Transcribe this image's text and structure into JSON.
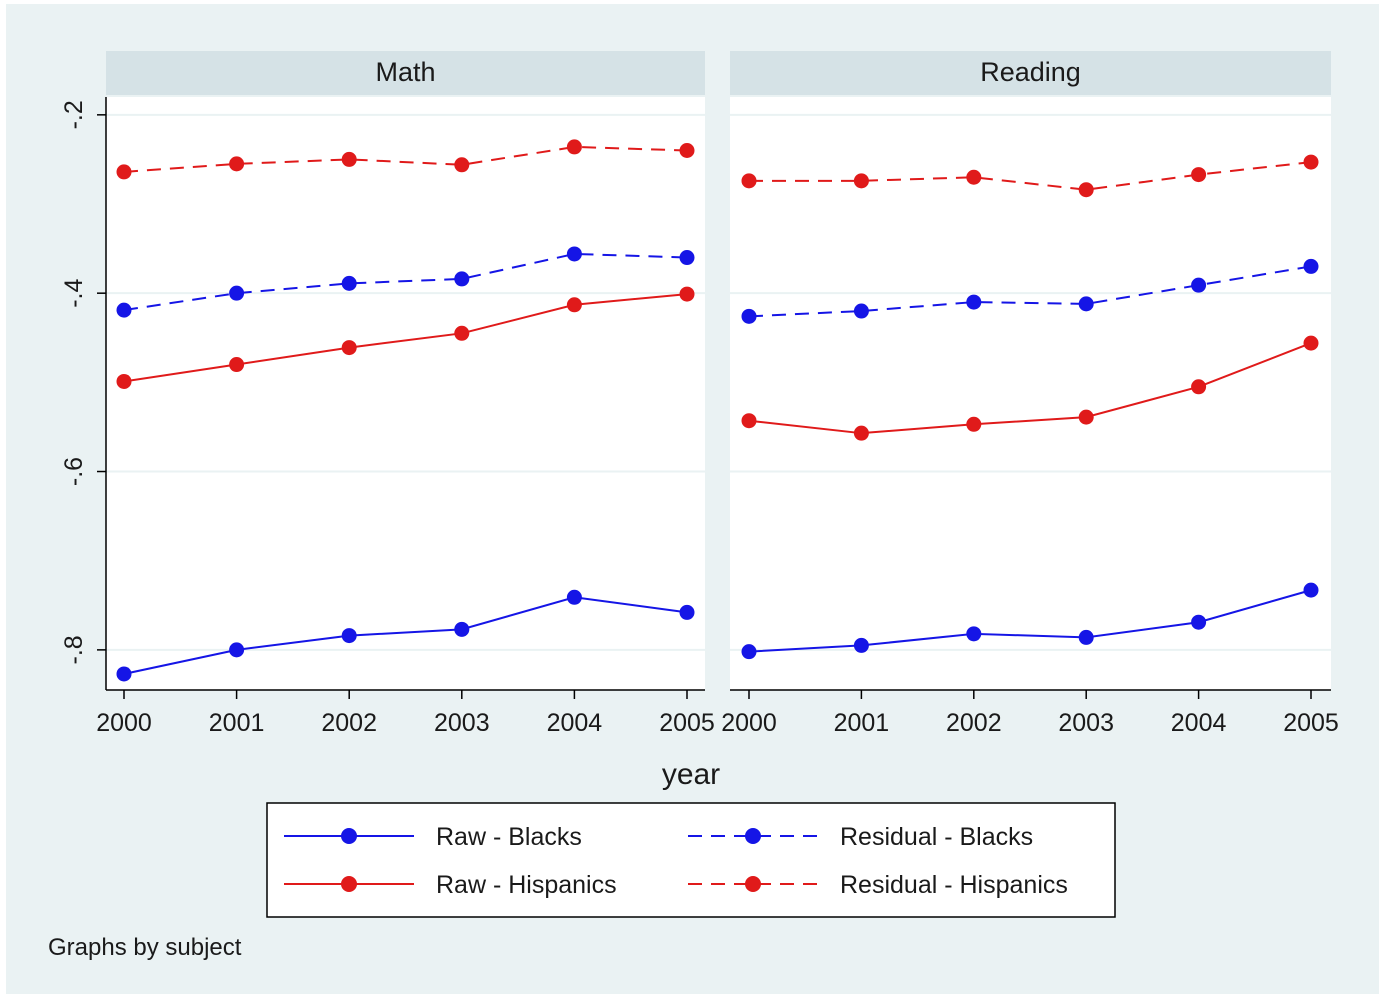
{
  "chart_data": {
    "type": "line",
    "colors": {
      "blacks": "#1515e6",
      "hispanics": "#e01a1a",
      "background": "#eaf2f3",
      "strip": "#d5e2e6"
    },
    "x": [
      2000,
      2001,
      2002,
      2003,
      2004,
      2005
    ],
    "x_tick_labels": [
      "2000",
      "2001",
      "2002",
      "2003",
      "2004",
      "2005"
    ],
    "ylim": [
      -0.845,
      -0.18
    ],
    "y_ticks": [
      -0.2,
      -0.4,
      -0.6,
      -0.8
    ],
    "y_tick_labels": [
      "-.2",
      "-.4",
      "-.6",
      "-.8"
    ],
    "xlabel": "year",
    "ylabel": "",
    "grid": true,
    "legend_position": "bottom",
    "note": "Graphs by subject",
    "series_defs": [
      {
        "key": "raw_blacks",
        "name": "Raw - Blacks",
        "color": "#1515e6",
        "dash": "solid"
      },
      {
        "key": "res_blacks",
        "name": "Residual - Blacks",
        "color": "#1515e6",
        "dash": "dashed"
      },
      {
        "key": "raw_hispanics",
        "name": "Raw - Hispanics",
        "color": "#e01a1a",
        "dash": "solid"
      },
      {
        "key": "res_hispanics",
        "name": "Residual - Hispanics",
        "color": "#e01a1a",
        "dash": "dashed"
      }
    ],
    "panels": [
      {
        "title": "Math",
        "series": {
          "raw_blacks": [
            -0.827,
            -0.8,
            -0.784,
            -0.777,
            -0.741,
            -0.758
          ],
          "res_blacks": [
            -0.419,
            -0.4,
            -0.389,
            -0.384,
            -0.356,
            -0.36
          ],
          "raw_hispanics": [
            -0.499,
            -0.48,
            -0.461,
            -0.445,
            -0.413,
            -0.401
          ],
          "res_hispanics": [
            -0.264,
            -0.255,
            -0.25,
            -0.256,
            -0.236,
            -0.24
          ]
        }
      },
      {
        "title": "Reading",
        "series": {
          "raw_blacks": [
            -0.802,
            -0.795,
            -0.782,
            -0.786,
            -0.769,
            -0.733
          ],
          "res_blacks": [
            -0.426,
            -0.42,
            -0.41,
            -0.412,
            -0.391,
            -0.37
          ],
          "raw_hispanics": [
            -0.543,
            -0.557,
            -0.547,
            -0.539,
            -0.505,
            -0.456
          ],
          "res_hispanics": [
            -0.274,
            -0.274,
            -0.27,
            -0.284,
            -0.267,
            -0.253
          ]
        }
      }
    ]
  }
}
